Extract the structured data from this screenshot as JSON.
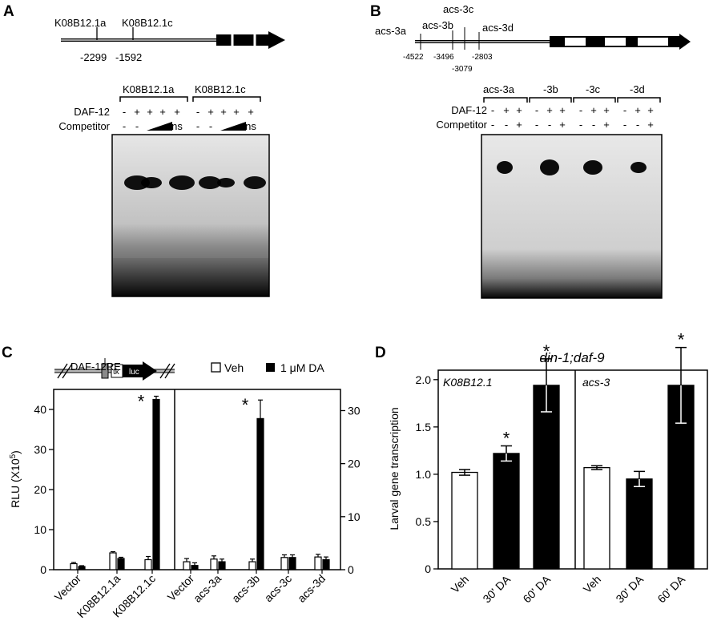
{
  "panels": {
    "a": {
      "letter": "A",
      "sites": [
        {
          "name": "K08B12.1a",
          "pos": "-2299"
        },
        {
          "name": "K08B12.1c",
          "pos": "-1592"
        }
      ],
      "gel_groups": [
        "K08B12.1a",
        "K08B12.1c"
      ],
      "row_labels": [
        "DAF-12",
        "Competitor"
      ],
      "lanes_daf12": [
        "-",
        "+",
        "+",
        "+",
        "+",
        "-",
        "+",
        "+",
        "+",
        "+"
      ],
      "lanes_comp": [
        "-",
        "-",
        "",
        "",
        "ns",
        "-",
        "-",
        "",
        "",
        "ns"
      ]
    },
    "b": {
      "letter": "B",
      "sites": [
        {
          "name": "acs-3a",
          "pos": "-4522"
        },
        {
          "name": "acs-3b",
          "pos": "-3496"
        },
        {
          "name": "acs-3c",
          "pos": "-3079"
        },
        {
          "name": "acs-3d",
          "pos": "-2803"
        }
      ],
      "gel_groups": [
        "acs-3a",
        "-3b",
        "-3c",
        "-3d"
      ],
      "row_labels": [
        "DAF-12",
        "Competitor"
      ],
      "lanes_daf12": [
        "-",
        "+",
        "+",
        "-",
        "+",
        "+",
        "-",
        "+",
        "+",
        "-",
        "+",
        "+"
      ],
      "lanes_comp": [
        "-",
        "-",
        "+",
        "-",
        "-",
        "+",
        "-",
        "-",
        "+",
        "-",
        "-",
        "+"
      ]
    },
    "c": {
      "letter": "C",
      "construct": {
        "element": "DAF-12RE",
        "tk": "tk",
        "luc": "luc"
      },
      "legend": [
        {
          "label": "Veh",
          "color": "#ffffff"
        },
        {
          "label": "1 μM DA",
          "color": "#000000"
        }
      ]
    },
    "d": {
      "letter": "D",
      "title": "din-1;daf-9",
      "sub_left": "K08B12.1",
      "sub_right": "acs-3"
    }
  },
  "chart_data": [
    {
      "type": "bar",
      "panel": "C",
      "ylabel": "RLU (X10⁵)",
      "sub_charts": [
        {
          "categories": [
            "Vector",
            "K08B12.1a",
            "K08B12.1c"
          ],
          "ylim": [
            0,
            45
          ],
          "yticks": [
            0,
            10,
            20,
            30,
            40
          ],
          "series": [
            {
              "name": "Veh",
              "values": [
                1.5,
                4.2,
                2.5
              ],
              "errors": [
                0.3,
                0.3,
                0.8
              ]
            },
            {
              "name": "1 μM DA",
              "values": [
                0.8,
                2.8,
                42.5
              ],
              "errors": [
                0.2,
                0.3,
                0.8
              ]
            }
          ],
          "significant": [
            {
              "category": "K08B12.1c",
              "label": "*"
            }
          ]
        },
        {
          "categories": [
            "Vector",
            "acs-3a",
            "acs-3b",
            "acs-3c",
            "acs-3d"
          ],
          "ylim": [
            0,
            34
          ],
          "yticks": [
            0,
            10,
            20,
            30
          ],
          "series": [
            {
              "name": "Veh",
              "values": [
                1.5,
                2.0,
                1.5,
                2.3,
                2.4
              ],
              "errors": [
                0.6,
                0.6,
                0.5,
                0.5,
                0.5
              ]
            },
            {
              "name": "1 μM DA",
              "values": [
                0.8,
                1.5,
                28.5,
                2.3,
                1.9
              ],
              "errors": [
                0.5,
                0.5,
                3.5,
                0.5,
                0.5
              ]
            }
          ],
          "significant": [
            {
              "category": "acs-3b",
              "label": "*"
            }
          ]
        }
      ]
    },
    {
      "type": "bar",
      "panel": "D",
      "title": "din-1;daf-9",
      "ylabel": "Larval gene transcription",
      "ylim": [
        0,
        2.1
      ],
      "yticks": [
        "0",
        "0.5",
        "1.0",
        "1.5",
        "2.0"
      ],
      "groups": [
        {
          "label": "K08B12.1",
          "categories": [
            "Veh",
            "30' DA",
            "60' DA"
          ],
          "values": [
            1.02,
            1.22,
            1.94
          ],
          "errors": [
            0.03,
            0.08,
            0.28
          ],
          "fills": [
            "#ffffff",
            "#000000",
            "#000000"
          ],
          "significant": [
            "",
            "*",
            "*"
          ]
        },
        {
          "label": "acs-3",
          "categories": [
            "Veh",
            "30' DA",
            "60' DA"
          ],
          "values": [
            1.07,
            0.95,
            1.94
          ],
          "errors": [
            0.02,
            0.08,
            0.4
          ],
          "fills": [
            "#ffffff",
            "#000000",
            "#000000"
          ],
          "significant": [
            "",
            "",
            "*"
          ]
        }
      ]
    }
  ]
}
